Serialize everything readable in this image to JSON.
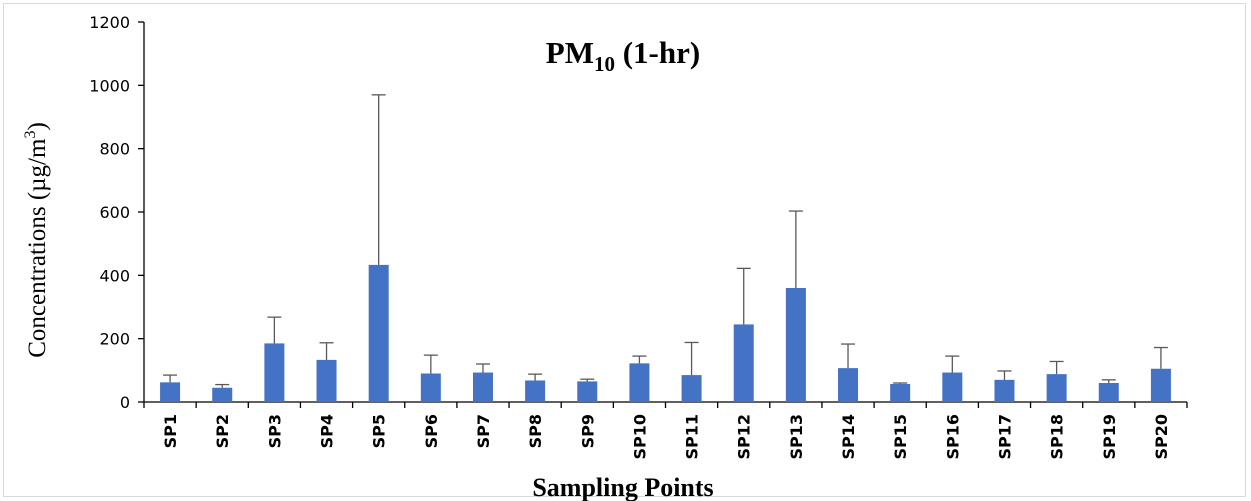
{
  "chart_data": {
    "type": "bar",
    "title": {
      "main": "PM",
      "subscript": "10",
      "suffix": " (1-hr)"
    },
    "xlabel": "Sampling Points",
    "ylabel": {
      "main": "Concentrations (µg/m",
      "superscript": "3",
      "suffix": ")"
    },
    "ylim": [
      0,
      1200
    ],
    "yticks": [
      0,
      200,
      400,
      600,
      800,
      1000,
      1200
    ],
    "categories": [
      "SP1",
      "SP2",
      "SP3",
      "SP4",
      "SP5",
      "SP6",
      "SP7",
      "SP8",
      "SP9",
      "SP10",
      "SP11",
      "SP12",
      "SP13",
      "SP14",
      "SP15",
      "SP16",
      "SP17",
      "SP18",
      "SP19",
      "SP20"
    ],
    "values": [
      62,
      45,
      185,
      133,
      433,
      90,
      93,
      68,
      65,
      122,
      85,
      245,
      360,
      107,
      57,
      93,
      70,
      88,
      60,
      105
    ],
    "error_upper": [
      85,
      55,
      268,
      187,
      970,
      148,
      120,
      88,
      72,
      145,
      188,
      422,
      603,
      183,
      60,
      145,
      98,
      128,
      70,
      172
    ],
    "bar_color": "#4472c4",
    "error_bar_color": "#595959",
    "grid": false,
    "legend": "none"
  }
}
